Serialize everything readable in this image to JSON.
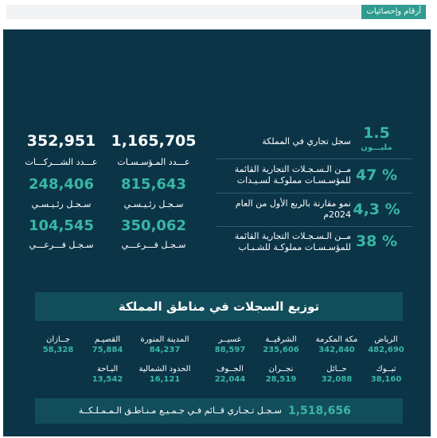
{
  "header": {
    "section_tag": "أرقام وإحصائيات"
  },
  "left_stats": {
    "companies_total": "352,951",
    "companies_label": "عـــدد الشـــركـــات",
    "est_total": "1,165,705",
    "est_label": "عـــدد المـؤسـسـات",
    "companies_main": "248,406",
    "companies_main_label": "سـجـل رئـيـسـي",
    "est_main": "815,643",
    "est_main_label": "سـجـل رئـيـسـي",
    "companies_branch": "104,545",
    "companies_branch_label": "سـجـل فـــرعـــي",
    "est_branch": "350,062",
    "est_branch_label": "سـجـل فـــرعـــي"
  },
  "right_stats": [
    {
      "value": "1.5",
      "sub": "مليـــون",
      "text": "سجل تجاري في المملكة"
    },
    {
      "value": "47 %",
      "text_line1": "مــن الـسـجـلات التجارية القائمة",
      "text_line2": "للمؤسـسـات مملوكـة لسـيـدات"
    },
    {
      "value": "4,3 %",
      "text_line1": "نمو مقارنة بالربع الأول من العام",
      "text_line2": "2024م"
    },
    {
      "value": "38 %",
      "text_line1": "مــن الـسـجـلات التجارية القائمة",
      "text_line2": "للمؤسـسـات مملوكـة للشـبـاب"
    }
  ],
  "regions": {
    "title": "توزيع السجلات في مناطق المملكة",
    "row1": [
      {
        "name": "الرياض",
        "value": "482,690"
      },
      {
        "name": "مكة المكرمة",
        "value": "342,840"
      },
      {
        "name": "الشرقيــة",
        "value": "235,606"
      },
      {
        "name": "عسيــر",
        "value": "88,597"
      },
      {
        "name": "المدينة المنورة",
        "value": "84,237"
      },
      {
        "name": "القصيـم",
        "value": "75,884"
      },
      {
        "name": "جــازان",
        "value": "58,328"
      }
    ],
    "row2": [
      {
        "name": "تبــوك",
        "value": "38,160"
      },
      {
        "name": "حــائل",
        "value": "32,088"
      },
      {
        "name": "نجــران",
        "value": "28,519"
      },
      {
        "name": "الجــوف",
        "value": "22,044"
      },
      {
        "name": "الحدود الشمالية",
        "value": "16,121"
      },
      {
        "name": "البـاحة",
        "value": "13,542"
      }
    ]
  },
  "total": {
    "value": "1,518,656",
    "label": "سـجـل تـجـاري قــائم فـي جـمـيـع مـنـاطـق الـمـمـلـكــة"
  }
}
